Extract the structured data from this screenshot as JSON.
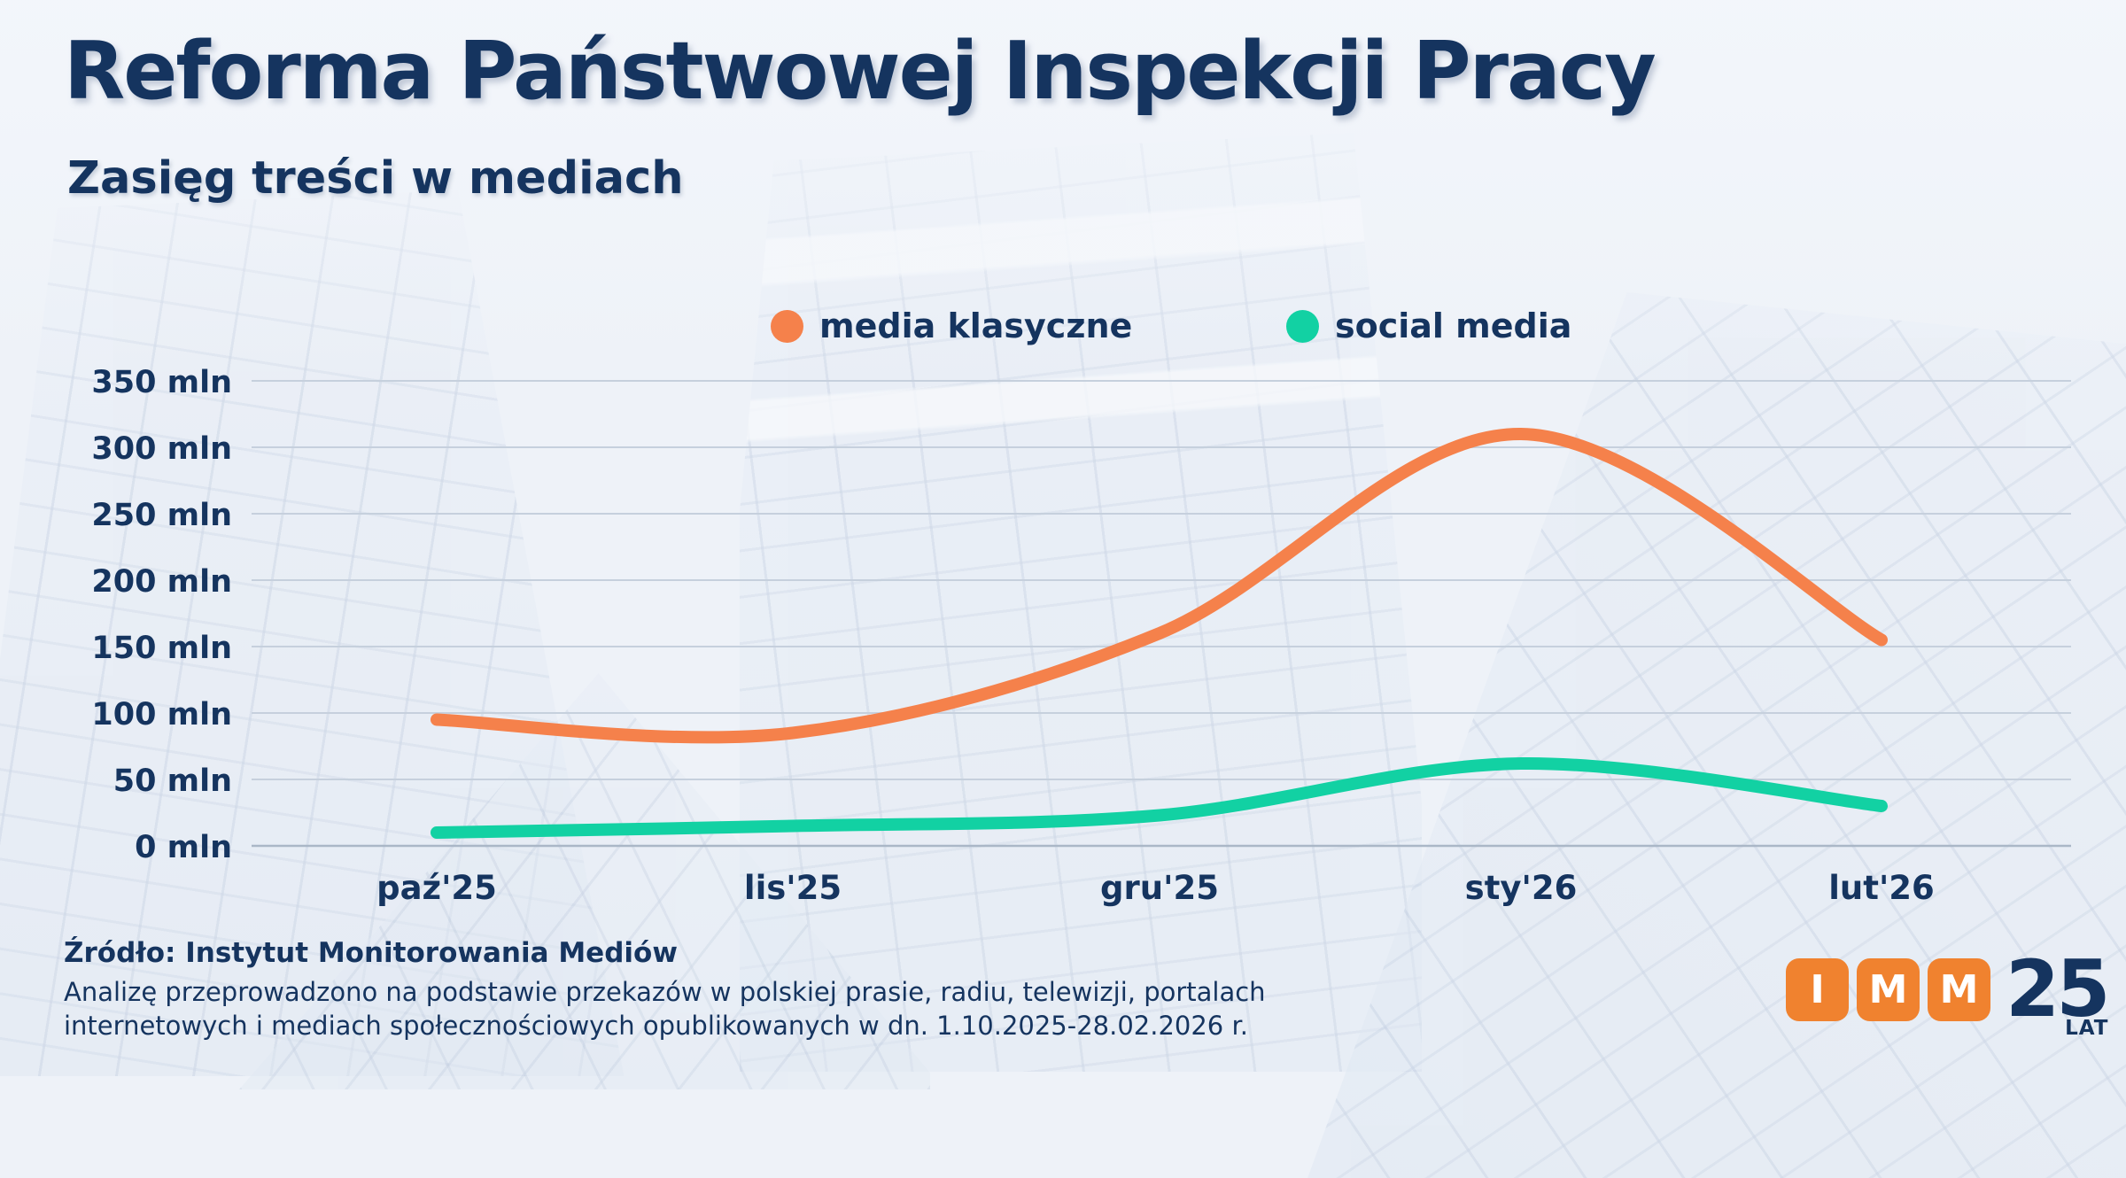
{
  "title": "Reforma Państwowej Inspekcji Pracy",
  "subtitle": "Zasięg treści w mediach",
  "legend": [
    {
      "label": "media klasyczne",
      "color": "#f5814b"
    },
    {
      "label": "social media",
      "color": "#12d1a3"
    }
  ],
  "chart_data": {
    "type": "line",
    "categories": [
      "paź'25",
      "lis'25",
      "gru'25",
      "sty'26",
      "lut'26"
    ],
    "series": [
      {
        "name": "media klasyczne",
        "color": "#f5814b",
        "values": [
          95,
          85,
          160,
          310,
          155
        ]
      },
      {
        "name": "social media",
        "color": "#12d1a3",
        "values": [
          10,
          15,
          23,
          62,
          30
        ]
      }
    ],
    "yticks": [
      0,
      50,
      100,
      150,
      200,
      250,
      300,
      350
    ],
    "ytick_suffix": " mln",
    "ylim": [
      0,
      350
    ],
    "xlabel": "",
    "ylabel": "",
    "grid": true,
    "legend_position": "top-center"
  },
  "footer": {
    "source": "Źródło: Instytut Monitorowania Mediów",
    "note_line1": "Analizę przeprowadzono na podstawie przekazów w polskiej prasie, radiu, telewizji, portalach",
    "note_line2": "internetowych i mediach społecznościowych opublikowanych w dn. 1.10.2025-28.02.2026 r."
  },
  "logo": {
    "blocks": [
      "I",
      "M",
      "M"
    ],
    "years": "25",
    "years_label": "LAT",
    "block_color": "#f0822f",
    "text_color": "#15345f"
  },
  "colors": {
    "background": "#eef2f8",
    "navy": "#15345f",
    "gridline": "#c6d0dd",
    "axis_line": "#aab7c7"
  }
}
